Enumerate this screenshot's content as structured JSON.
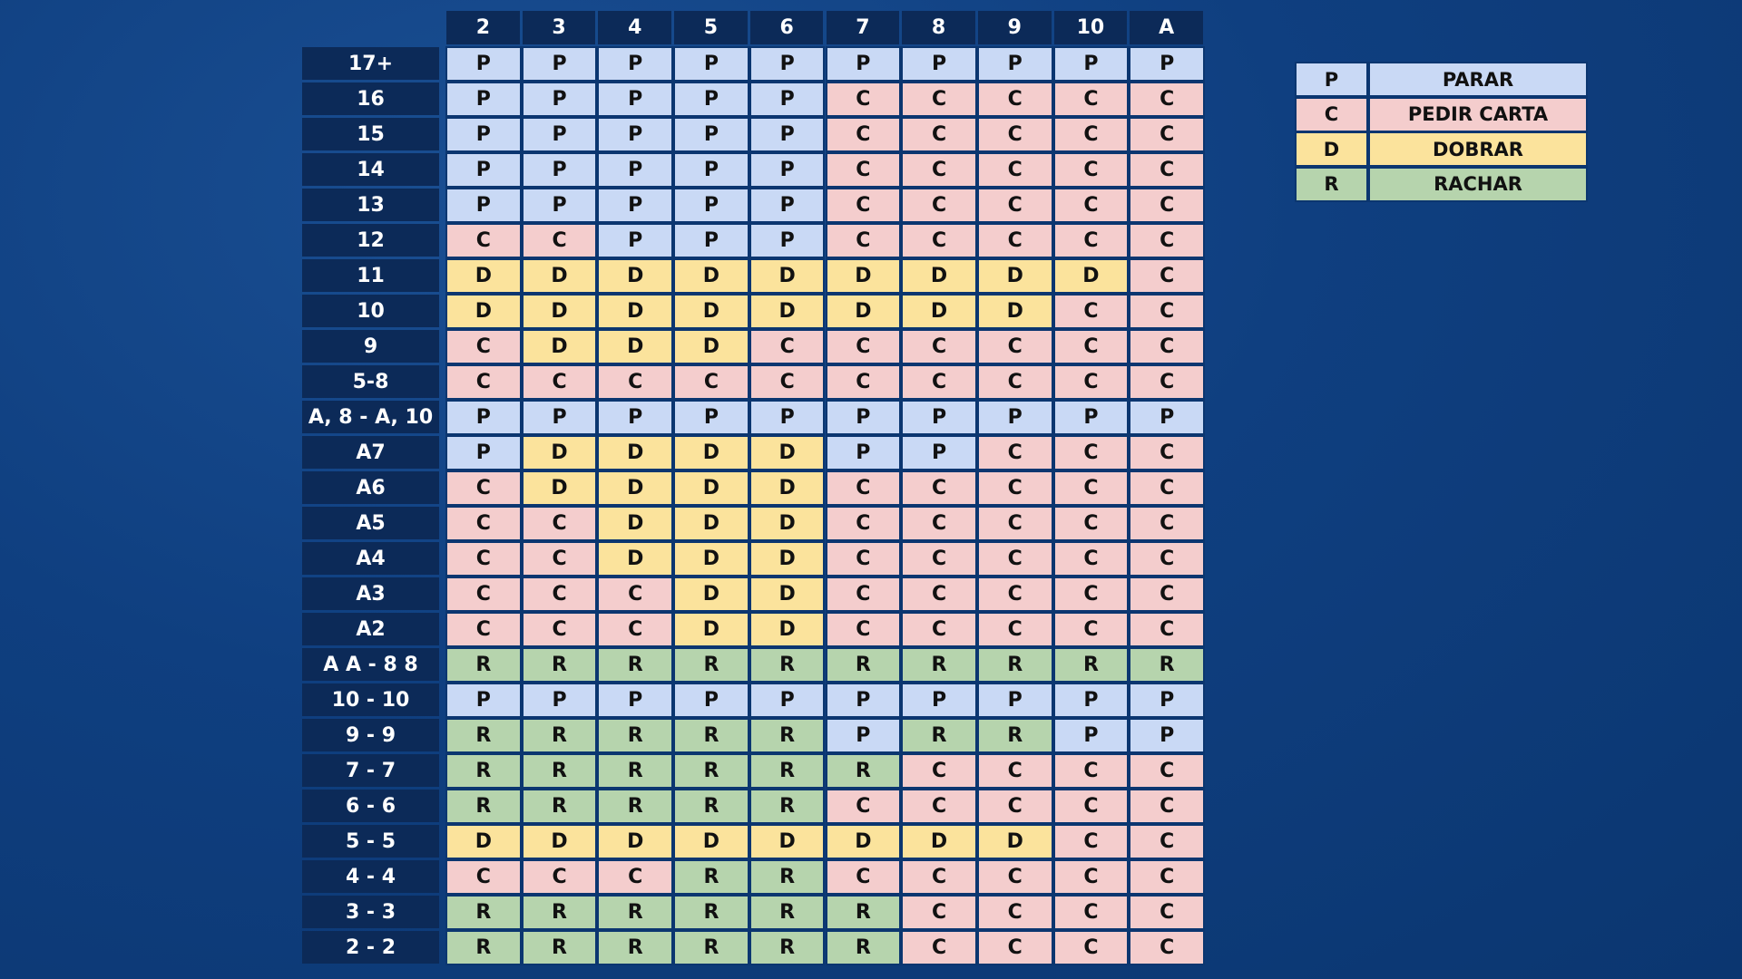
{
  "table": {
    "columns": [
      "2",
      "3",
      "4",
      "5",
      "6",
      "7",
      "8",
      "9",
      "10",
      "A"
    ],
    "rows": [
      {
        "label": "17+",
        "cells": [
          "P",
          "P",
          "P",
          "P",
          "P",
          "P",
          "P",
          "P",
          "P",
          "P"
        ]
      },
      {
        "label": "16",
        "cells": [
          "P",
          "P",
          "P",
          "P",
          "P",
          "C",
          "C",
          "C",
          "C",
          "C"
        ]
      },
      {
        "label": "15",
        "cells": [
          "P",
          "P",
          "P",
          "P",
          "P",
          "C",
          "C",
          "C",
          "C",
          "C"
        ]
      },
      {
        "label": "14",
        "cells": [
          "P",
          "P",
          "P",
          "P",
          "P",
          "C",
          "C",
          "C",
          "C",
          "C"
        ]
      },
      {
        "label": "13",
        "cells": [
          "P",
          "P",
          "P",
          "P",
          "P",
          "C",
          "C",
          "C",
          "C",
          "C"
        ]
      },
      {
        "label": "12",
        "cells": [
          "C",
          "C",
          "P",
          "P",
          "P",
          "C",
          "C",
          "C",
          "C",
          "C"
        ]
      },
      {
        "label": "11",
        "cells": [
          "D",
          "D",
          "D",
          "D",
          "D",
          "D",
          "D",
          "D",
          "D",
          "C"
        ]
      },
      {
        "label": "10",
        "cells": [
          "D",
          "D",
          "D",
          "D",
          "D",
          "D",
          "D",
          "D",
          "C",
          "C"
        ]
      },
      {
        "label": "9",
        "cells": [
          "C",
          "D",
          "D",
          "D",
          "C",
          "C",
          "C",
          "C",
          "C",
          "C"
        ]
      },
      {
        "label": "5-8",
        "cells": [
          "C",
          "C",
          "C",
          "C",
          "C",
          "C",
          "C",
          "C",
          "C",
          "C"
        ]
      },
      {
        "label": "A, 8 - A, 10",
        "cells": [
          "P",
          "P",
          "P",
          "P",
          "P",
          "P",
          "P",
          "P",
          "P",
          "P"
        ]
      },
      {
        "label": "A7",
        "cells": [
          "P",
          "D",
          "D",
          "D",
          "D",
          "P",
          "P",
          "C",
          "C",
          "C"
        ]
      },
      {
        "label": "A6",
        "cells": [
          "C",
          "D",
          "D",
          "D",
          "D",
          "C",
          "C",
          "C",
          "C",
          "C"
        ]
      },
      {
        "label": "A5",
        "cells": [
          "C",
          "C",
          "D",
          "D",
          "D",
          "C",
          "C",
          "C",
          "C",
          "C"
        ]
      },
      {
        "label": "A4",
        "cells": [
          "C",
          "C",
          "D",
          "D",
          "D",
          "C",
          "C",
          "C",
          "C",
          "C"
        ]
      },
      {
        "label": "A3",
        "cells": [
          "C",
          "C",
          "C",
          "D",
          "D",
          "C",
          "C",
          "C",
          "C",
          "C"
        ]
      },
      {
        "label": "A2",
        "cells": [
          "C",
          "C",
          "C",
          "D",
          "D",
          "C",
          "C",
          "C",
          "C",
          "C"
        ]
      },
      {
        "label": "A A - 8 8",
        "cells": [
          "R",
          "R",
          "R",
          "R",
          "R",
          "R",
          "R",
          "R",
          "R",
          "R"
        ]
      },
      {
        "label": "10 - 10",
        "cells": [
          "P",
          "P",
          "P",
          "P",
          "P",
          "P",
          "P",
          "P",
          "P",
          "P"
        ]
      },
      {
        "label": "9 - 9",
        "cells": [
          "R",
          "R",
          "R",
          "R",
          "R",
          "P",
          "R",
          "R",
          "P",
          "P"
        ]
      },
      {
        "label": "7 - 7",
        "cells": [
          "R",
          "R",
          "R",
          "R",
          "R",
          "R",
          "C",
          "C",
          "C",
          "C"
        ]
      },
      {
        "label": "6 - 6",
        "cells": [
          "R",
          "R",
          "R",
          "R",
          "R",
          "C",
          "C",
          "C",
          "C",
          "C"
        ]
      },
      {
        "label": "5 - 5",
        "cells": [
          "D",
          "D",
          "D",
          "D",
          "D",
          "D",
          "D",
          "D",
          "C",
          "C"
        ]
      },
      {
        "label": "4 - 4",
        "cells": [
          "C",
          "C",
          "C",
          "R",
          "R",
          "C",
          "C",
          "C",
          "C",
          "C"
        ]
      },
      {
        "label": "3 - 3",
        "cells": [
          "R",
          "R",
          "R",
          "R",
          "R",
          "R",
          "C",
          "C",
          "C",
          "C"
        ]
      },
      {
        "label": "2 - 2",
        "cells": [
          "R",
          "R",
          "R",
          "R",
          "R",
          "R",
          "C",
          "C",
          "C",
          "C"
        ]
      }
    ]
  },
  "legend": [
    {
      "key": "P",
      "label": "PARAR",
      "color": "#c9d9f5"
    },
    {
      "key": "C",
      "label": "PEDIR CARTA",
      "color": "#f4cdcd"
    },
    {
      "key": "D",
      "label": "DOBRAR",
      "color": "#fbe39c"
    },
    {
      "key": "R",
      "label": "RACHAR",
      "color": "#b6d4ad"
    }
  ]
}
